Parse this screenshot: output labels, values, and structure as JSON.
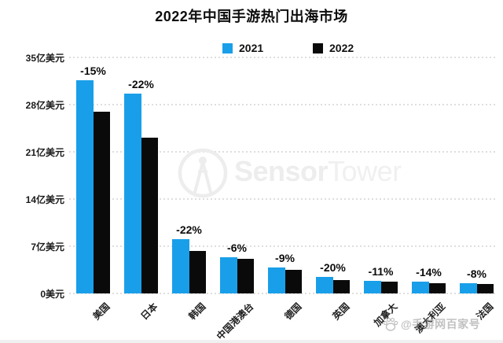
{
  "title": "2022年中国手游热门出海市场",
  "legend": [
    {
      "label": "2021",
      "color": "#199FE9"
    },
    {
      "label": "2022",
      "color": "#0A0A0A"
    }
  ],
  "chart_data": {
    "type": "bar",
    "title": "2022年中国手游热门出海市场",
    "unit": "亿美元",
    "categories": [
      "美国",
      "日本",
      "韩国",
      "中国港澳台",
      "德国",
      "英国",
      "加拿大",
      "澳大利亚",
      "法国"
    ],
    "series": [
      {
        "name": "2021",
        "color": "#199FE9",
        "values": [
          31.6,
          29.6,
          8.1,
          5.4,
          3.9,
          2.5,
          1.9,
          1.7,
          1.5
        ]
      },
      {
        "name": "2022",
        "color": "#0A0A0A",
        "values": [
          26.9,
          23.1,
          6.3,
          5.1,
          3.5,
          2.0,
          1.7,
          1.5,
          1.4
        ]
      }
    ],
    "change_labels": [
      "-15%",
      "-22%",
      "-22%",
      "-6%",
      "-9%",
      "-20%",
      "-11%",
      "-14%",
      "-8%"
    ],
    "y_ticks": [
      {
        "value": 35,
        "label": "35亿美元"
      },
      {
        "value": 28,
        "label": "28亿美元"
      },
      {
        "value": 21,
        "label": "21亿美元"
      },
      {
        "value": 14,
        "label": "14亿美元"
      },
      {
        "value": 7,
        "label": "7亿美元"
      },
      {
        "value": 0,
        "label": "0美元"
      }
    ],
    "ylim": [
      0,
      35
    ],
    "grid": "horizontal-dotted",
    "legend_position": "top-center",
    "xlabel": "",
    "ylabel": ""
  },
  "watermark_center": {
    "brand_bold": "Sensor",
    "brand_light": "Tower"
  },
  "watermark_corner": {
    "text": "@手游网百家号"
  }
}
